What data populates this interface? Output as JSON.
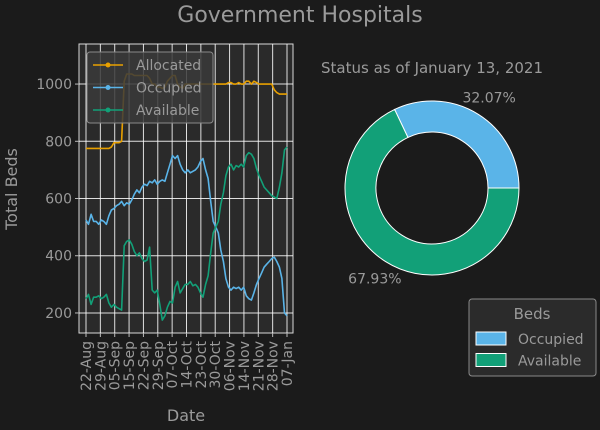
{
  "title": "Government Hospitals",
  "colors": {
    "background": "#1b1b1b",
    "axes": "#2a2a2a",
    "text": "#9a9a9a",
    "grid": "#ffffff",
    "allocated": "#e8a000",
    "occupied": "#5ab4e8",
    "available": "#12a078"
  },
  "chart_data": [
    {
      "type": "line",
      "xlabel": "Date",
      "ylabel": "Total Beds",
      "ylim": [
        130,
        1140
      ],
      "yticks": [
        200,
        400,
        600,
        800,
        1000
      ],
      "xticks": [
        "22-Aug",
        "29-Aug",
        "05-Sep",
        "15-Sep",
        "22-Sep",
        "29-Sep",
        "07-Oct",
        "14-Oct",
        "23-Oct",
        "30-Oct",
        "06-Nov",
        "14-Nov",
        "21-Nov",
        "28-Nov",
        "07-Jan"
      ],
      "grid": true,
      "legend_position": "top-left",
      "series": [
        {
          "name": "Allocated",
          "color_key": "allocated",
          "values": [
            775,
            775,
            775,
            775,
            775,
            775,
            775,
            775,
            775,
            775,
            780,
            795,
            795,
            795,
            800,
            1010,
            1035,
            1035,
            1035,
            1030,
            1030,
            1030,
            1030,
            1030,
            1030,
            1020,
            1000,
            1000,
            990,
            990,
            985,
            990,
            1010,
            1020,
            1030,
            1030,
            1000,
            990,
            985,
            1000,
            1000,
            1000,
            1000,
            1000,
            1000,
            1000,
            1000,
            1000,
            1000,
            1000,
            1000,
            1000,
            1000,
            1000,
            1000,
            1000,
            1005,
            1005,
            1000,
            1000,
            1005,
            1000,
            1000,
            1010,
            1010,
            1000,
            1010,
            1005,
            1000,
            1000,
            1000,
            1000,
            1000,
            1000,
            980,
            970,
            965,
            965,
            965,
            965
          ]
        },
        {
          "name": "Occupied",
          "color_key": "occupied",
          "values": [
            525,
            510,
            545,
            520,
            520,
            510,
            525,
            520,
            510,
            540,
            560,
            565,
            575,
            580,
            590,
            575,
            585,
            580,
            595,
            615,
            630,
            620,
            640,
            650,
            645,
            660,
            655,
            665,
            650,
            660,
            665,
            660,
            690,
            720,
            750,
            740,
            750,
            720,
            700,
            690,
            700,
            690,
            695,
            700,
            710,
            730,
            740,
            700,
            670,
            590,
            520,
            500,
            480,
            420,
            380,
            320,
            290,
            280,
            290,
            285,
            290,
            280,
            290,
            260,
            250,
            245,
            270,
            300,
            320,
            340,
            360,
            370,
            380,
            390,
            395,
            380,
            360,
            320,
            200,
            190
          ]
        },
        {
          "name": "Available",
          "color_key": "available",
          "values": [
            250,
            265,
            230,
            255,
            255,
            260,
            250,
            255,
            265,
            235,
            220,
            230,
            220,
            215,
            210,
            435,
            450,
            455,
            440,
            415,
            400,
            410,
            390,
            380,
            385,
            430,
            280,
            270,
            280,
            230,
            175,
            190,
            220,
            240,
            235,
            290,
            310,
            270,
            285,
            300,
            300,
            310,
            295,
            300,
            290,
            270,
            255,
            300,
            330,
            410,
            480,
            500,
            520,
            580,
            620,
            680,
            710,
            720,
            700,
            715,
            710,
            720,
            710,
            750,
            760,
            755,
            740,
            705,
            680,
            660,
            640,
            630,
            620,
            610,
            605,
            600,
            640,
            690,
            770,
            780
          ]
        }
      ]
    },
    {
      "type": "pie",
      "style": "donut",
      "subtitle": "Status as of January 13, 2021",
      "legend_title": "Beds",
      "legend_position": "bottom-right",
      "slices": [
        {
          "label": "Occupied",
          "value": 32.07,
          "display": "32.07%",
          "color_key": "occupied"
        },
        {
          "label": "Available",
          "value": 67.93,
          "display": "67.93%",
          "color_key": "available"
        }
      ]
    }
  ]
}
